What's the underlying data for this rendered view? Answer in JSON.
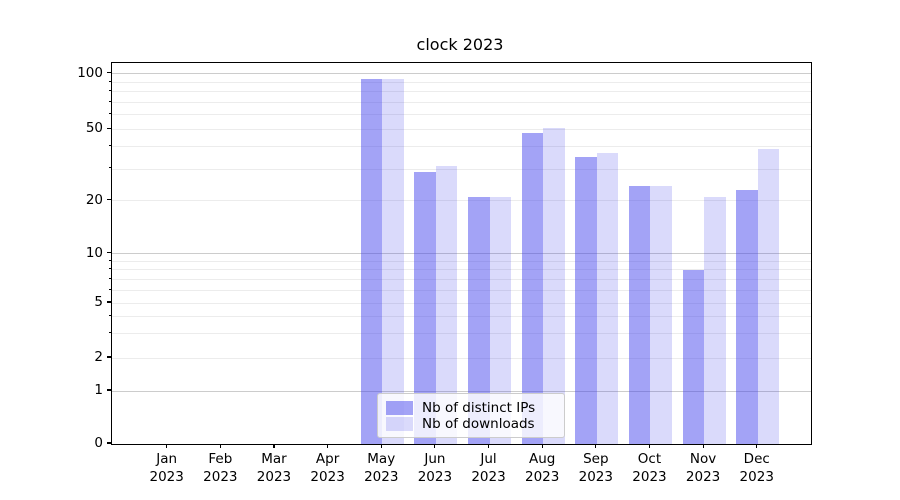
{
  "title": "clock 2023",
  "legend": {
    "items": [
      {
        "label": "Nb of distinct IPs",
        "color": "rgba(60,60,235,0.47)"
      },
      {
        "label": "Nb of downloads",
        "color": "rgba(60,60,235,0.19)"
      }
    ]
  },
  "axes": {
    "ytick_labels": [
      "0",
      "1",
      "2",
      "5",
      "10",
      "20",
      "50",
      "100"
    ]
  },
  "chart_data": {
    "type": "bar",
    "title": "clock 2023",
    "categories": [
      "Jan 2023",
      "Feb 2023",
      "Mar 2023",
      "Apr 2023",
      "May 2023",
      "Jun 2023",
      "Jul 2023",
      "Aug 2023",
      "Sep 2023",
      "Oct 2023",
      "Nov 2023",
      "Dec 2023"
    ],
    "series": [
      {
        "name": "Nb of distinct IPs",
        "color": "rgba(60,60,235,0.47)",
        "values": [
          0,
          0,
          0,
          0,
          94,
          29,
          21,
          48,
          35,
          24,
          8,
          23
        ]
      },
      {
        "name": "Nb of downloads",
        "color": "rgba(60,60,235,0.19)",
        "values": [
          0,
          0,
          0,
          0,
          94,
          31,
          21,
          51,
          37,
          24,
          21,
          39
        ]
      }
    ],
    "xlabel": "",
    "ylabel": "",
    "yscale": "symlog",
    "ylim": [
      0,
      117
    ],
    "yticks": [
      0,
      1,
      2,
      5,
      10,
      20,
      50,
      100
    ],
    "major_gridlines": [
      1,
      10,
      100
    ],
    "minor_gridlines": [
      2,
      3,
      4,
      5,
      6,
      7,
      8,
      9,
      20,
      30,
      40,
      50,
      60,
      70,
      80,
      90
    ],
    "grid": "on",
    "legend_position": "lower center",
    "bar_colors": {
      "distinct_ips": "#a5a5f7",
      "downloads": "#dbdbfa"
    },
    "text_color": "#000000",
    "background_color": "#ffffff"
  }
}
